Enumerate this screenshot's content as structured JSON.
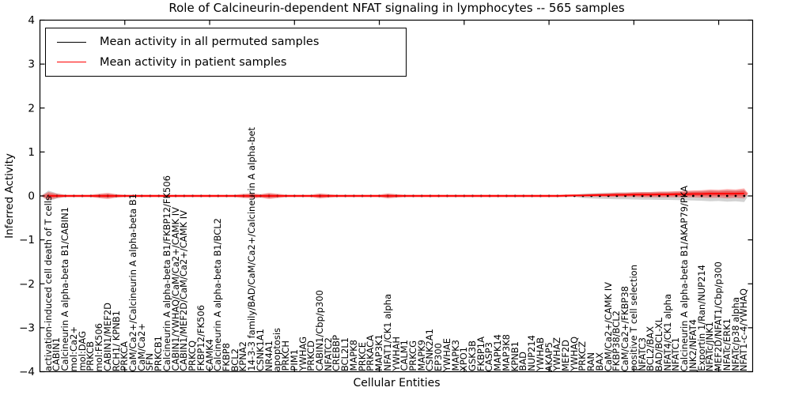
{
  "chart_data": {
    "type": "violin",
    "title": "Role of Calcineurin-dependent NFAT signaling in lymphocytes -- 565 samples",
    "xlabel": "Cellular Entities",
    "ylabel": "Inferred Activity",
    "ylim": [
      -4,
      4
    ],
    "xlim": [
      0,
      84
    ],
    "yticks": [
      4,
      3,
      2,
      1,
      0,
      -1,
      -2,
      -3,
      -4
    ],
    "x_unlabeled_ticks": [
      10,
      20,
      30,
      40,
      50,
      60,
      70,
      80
    ],
    "grid": false,
    "legend_position": "upper left",
    "categories": [
      "activation-induced cell death of T cells",
      "CABIN1",
      "Calcineurin A alpha-beta B1/CABIN1",
      "mol:Ca2+",
      "mol:DAG",
      "PRKCB",
      "mol:FK506",
      "CABIN1/MEF2D",
      "RCH1/ KPNB1",
      "PRKCA",
      "CaM/Ca2+/Calcineurin A alpha-beta B1",
      "CaM/Ca2+",
      "SFN",
      "PRKCB1",
      "Calcineurin A alpha-beta B1/FKBP12/FK506",
      "CABIN1/YWHAQ/CaM/Ca2+/CAMK IV",
      "CABIN1/MEF2D/CaM/Ca2+/CAMK IV",
      "PRKCQ",
      "FKBP12/FK506",
      "CAMK4",
      "Calcineurin A alpha-beta B1/BCL2",
      "FKBP8",
      "BCL2",
      "KPNA2",
      "14-3-3 family/BAD/CaM/Ca2+/Calcineurin A alpha-bet",
      "CSNK1A1",
      "NR4A1",
      "apoptosis",
      "PRKCH",
      "PIM1",
      "YWHAG",
      "PRKCD",
      "CABIN1/Cbp/p300",
      "NFATC2",
      "CREBBP",
      "BCL2L1",
      "MAPK8",
      "PRKCE",
      "PRKACA",
      "MAP3K1",
      "NFAT1/CK1 alpha",
      "YWHAH",
      "CALM1",
      "PRKCG",
      "MAPK9",
      "CSNK2A1",
      "EP300",
      "YWHAE",
      "MAPK3",
      "XPO1",
      "GSK3B",
      "FKBP1A",
      "CASP3",
      "MAPK14",
      "MAP3K8",
      "KPNB1",
      "BAD",
      "NUP214",
      "YWHAB",
      "AKAP5",
      "YWHAZ",
      "MEF2D",
      "YWHAQ",
      "PRKCZ",
      "RAN",
      "BAX",
      "CaM/Ca2+/CAMK IV",
      "FKBP38/BCL2",
      "CaM/Ca2+/FKBP38",
      "positive T cell selection",
      "NFATC3",
      "BCL2/BAX",
      "BAD/BCL-XL",
      "NFAT4/CK1 alpha",
      "NFATC1",
      "Calcineurin A alpha-beta B1/AKAP79/PKA",
      "JNK2/NFAT4",
      "Exportin 1/Ran/NUP214",
      "NFATc/JNK1",
      "MEF2D/NFAT1/Cbp/p300",
      "NFATc/ERK1",
      "NFATc/p38 alpha",
      "NFAT1-c-4/YWHAQ"
    ],
    "series": [
      {
        "name": "Mean activity in all permuted samples",
        "color": "#000000",
        "style": "dot-markers",
        "values": [
          0,
          0,
          0,
          0,
          0,
          0,
          0,
          0,
          0,
          0,
          0,
          0,
          0,
          0,
          0,
          0,
          0,
          0,
          0,
          0,
          0,
          0,
          0,
          0,
          0,
          0,
          0,
          0,
          0,
          0,
          0,
          0,
          0,
          0,
          0,
          0,
          0,
          0,
          0,
          0,
          0,
          0,
          0,
          0,
          0,
          0,
          0,
          0,
          0,
          0,
          0,
          0,
          0,
          0,
          0,
          0,
          0,
          0,
          0,
          0,
          0,
          0,
          0,
          0,
          0,
          0,
          0,
          0,
          0,
          0,
          0,
          0,
          0,
          0,
          0,
          0,
          0,
          0,
          0,
          0,
          0,
          0,
          0
        ]
      },
      {
        "name": "Mean activity in patient samples",
        "color": "#ff0000",
        "style": "line",
        "values": [
          0,
          0,
          0,
          0,
          0,
          0,
          0,
          0,
          0,
          0,
          0,
          0,
          0,
          0,
          0,
          0,
          0,
          0,
          0,
          0,
          0,
          0,
          0,
          0,
          0,
          0,
          0,
          0,
          0,
          0,
          0,
          0,
          0,
          0,
          0,
          0,
          0,
          0,
          0,
          0,
          0,
          0,
          0,
          0,
          0,
          0,
          0,
          0,
          0,
          0,
          0,
          0,
          0,
          0,
          0,
          0,
          0,
          0,
          0,
          0,
          0,
          0.005,
          0.01,
          0.01,
          0.015,
          0.02,
          0.02,
          0.025,
          0.025,
          0.03,
          0.03,
          0.03,
          0.035,
          0.035,
          0.04,
          0.04,
          0.045,
          0.045,
          0.05,
          0.05,
          0.05,
          0.05,
          0.055
        ]
      }
    ],
    "violins": [
      {
        "name": "permuted-samples-distribution",
        "color": "#777777",
        "opacity": 0.33,
        "center": "permuted-mean",
        "half_width": [
          0.12,
          0.06,
          0.02,
          0.02,
          0.02,
          0.02,
          0.04,
          0.05,
          0.03,
          0.02,
          0.02,
          0.02,
          0.02,
          0.02,
          0.02,
          0.02,
          0.02,
          0.02,
          0.02,
          0.02,
          0.02,
          0.02,
          0.02,
          0.035,
          0.04,
          0.03,
          0.05,
          0.035,
          0.02,
          0.02,
          0.02,
          0.02,
          0.04,
          0.03,
          0.02,
          0.02,
          0.02,
          0.02,
          0.02,
          0.02,
          0.04,
          0.03,
          0.02,
          0.02,
          0.02,
          0.02,
          0.02,
          0.02,
          0.02,
          0.02,
          0.02,
          0.02,
          0.02,
          0.02,
          0.02,
          0.02,
          0.02,
          0.02,
          0.02,
          0.02,
          0.02,
          0.02,
          0.02,
          0.05,
          0.06,
          0.065,
          0.07,
          0.075,
          0.075,
          0.08,
          0.085,
          0.085,
          0.09,
          0.09,
          0.095,
          0.1,
          0.105,
          0.11,
          0.12,
          0.115,
          0.13,
          0.12,
          0.14
        ]
      },
      {
        "name": "patient-samples-distribution",
        "color": "#ff0000",
        "opacity": 0.32,
        "center": "patient-mean",
        "half_width": [
          0.09,
          0.05,
          0.03,
          0.03,
          0.03,
          0.03,
          0.05,
          0.07,
          0.04,
          0.03,
          0.03,
          0.03,
          0.03,
          0.03,
          0.03,
          0.03,
          0.03,
          0.03,
          0.03,
          0.03,
          0.03,
          0.03,
          0.03,
          0.05,
          0.06,
          0.04,
          0.07,
          0.05,
          0.03,
          0.03,
          0.03,
          0.03,
          0.06,
          0.04,
          0.03,
          0.03,
          0.03,
          0.03,
          0.03,
          0.03,
          0.06,
          0.04,
          0.03,
          0.03,
          0.03,
          0.03,
          0.03,
          0.03,
          0.03,
          0.03,
          0.03,
          0.03,
          0.03,
          0.03,
          0.03,
          0.03,
          0.03,
          0.03,
          0.03,
          0.03,
          0.03,
          0.03,
          0.03,
          0.03,
          0.035,
          0.04,
          0.045,
          0.05,
          0.05,
          0.055,
          0.06,
          0.06,
          0.065,
          0.065,
          0.07,
          0.075,
          0.08,
          0.085,
          0.095,
          0.09,
          0.105,
          0.095,
          0.115
        ]
      }
    ]
  }
}
